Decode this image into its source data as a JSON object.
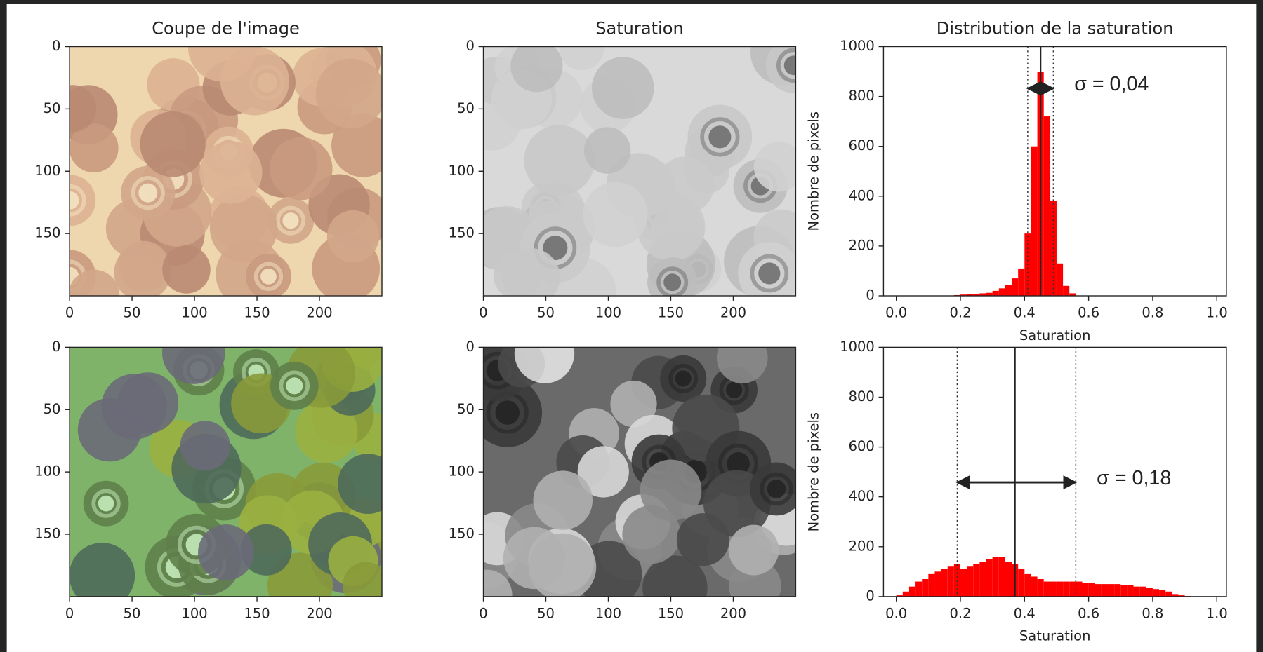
{
  "chart_data": [
    {
      "type": "image",
      "title": "Coupe de l'image",
      "xlim": [
        0,
        250
      ],
      "ylim": [
        0,
        200
      ],
      "y_inverted": true,
      "xticks": [
        0,
        50,
        100,
        150,
        200
      ],
      "yticks": [
        0,
        50,
        100,
        150
      ]
    },
    {
      "type": "image",
      "title": "Saturation",
      "xlim": [
        0,
        250
      ],
      "ylim": [
        0,
        200
      ],
      "y_inverted": true,
      "xticks": [
        0,
        50,
        100,
        150,
        200
      ],
      "yticks": [
        0,
        50,
        100,
        150
      ]
    },
    {
      "type": "histogram",
      "title": "Distribution de la saturation",
      "xlabel": "Saturation",
      "ylabel": "Nombre de pixels",
      "color": "#ff0000",
      "xlim": [
        -0.04,
        1.03
      ],
      "ylim": [
        0,
        1000
      ],
      "xticks": [
        {
          "value": 0,
          "label": "0.0"
        },
        {
          "value": 0.2,
          "label": "0.2"
        },
        {
          "value": 0.4,
          "label": "0.4"
        },
        {
          "value": 0.6,
          "label": "0.6"
        },
        {
          "value": 0.8,
          "label": "0.8"
        },
        {
          "value": 1,
          "label": "1.0"
        }
      ],
      "yticks": [
        0,
        200,
        400,
        600,
        800,
        1000
      ],
      "bins": [
        0,
        0.02,
        0.04,
        0.06,
        0.08,
        0.1,
        0.12,
        0.14,
        0.16,
        0.18,
        0.2,
        0.22,
        0.24,
        0.26,
        0.28,
        0.3,
        0.32,
        0.34,
        0.36,
        0.38,
        0.4,
        0.42,
        0.44,
        0.46,
        0.48,
        0.5,
        0.52,
        0.54,
        0.56,
        0.58,
        0.6,
        0.62,
        0.64,
        0.66,
        0.68,
        0.7,
        0.72,
        0.74,
        0.76,
        0.78,
        0.8,
        0.82,
        0.84,
        0.86,
        0.88,
        0.9,
        0.92,
        0.94,
        0.96,
        0.98,
        1
      ],
      "values": [
        0,
        0,
        0,
        0,
        0,
        0,
        0,
        0,
        0,
        3,
        5,
        6,
        8,
        10,
        12,
        20,
        30,
        45,
        70,
        110,
        250,
        600,
        900,
        720,
        380,
        130,
        40,
        10,
        0,
        0,
        0,
        0,
        0,
        0,
        0,
        0,
        0,
        0,
        0,
        0,
        0,
        0,
        0,
        0,
        0,
        0,
        0,
        0,
        0,
        0
      ],
      "mean": 0.45,
      "std_bounds": [
        0.41,
        0.49
      ],
      "annotation": "σ = 0,04"
    },
    {
      "type": "image",
      "xlim": [
        0,
        250
      ],
      "ylim": [
        0,
        200
      ],
      "y_inverted": true,
      "xticks": [
        0,
        50,
        100,
        150,
        200
      ],
      "yticks": [
        0,
        50,
        100,
        150
      ]
    },
    {
      "type": "image",
      "xlim": [
        0,
        250
      ],
      "ylim": [
        0,
        200
      ],
      "y_inverted": true,
      "xticks": [
        0,
        50,
        100,
        150,
        200
      ],
      "yticks": [
        0,
        50,
        100,
        150
      ]
    },
    {
      "type": "histogram",
      "xlabel": "Saturation",
      "ylabel": "Nombre de pixels",
      "color": "#ff0000",
      "xlim": [
        -0.04,
        1.03
      ],
      "ylim": [
        0,
        1000
      ],
      "xticks": [
        {
          "value": 0,
          "label": "0.0"
        },
        {
          "value": 0.2,
          "label": "0.2"
        },
        {
          "value": 0.4,
          "label": "0.4"
        },
        {
          "value": 0.6,
          "label": "0.6"
        },
        {
          "value": 0.8,
          "label": "0.8"
        },
        {
          "value": 1,
          "label": "1.0"
        }
      ],
      "yticks": [
        0,
        200,
        400,
        600,
        800,
        1000
      ],
      "bins": [
        0,
        0.02,
        0.04,
        0.06,
        0.08,
        0.1,
        0.12,
        0.14,
        0.16,
        0.18,
        0.2,
        0.22,
        0.24,
        0.26,
        0.28,
        0.3,
        0.32,
        0.34,
        0.36,
        0.38,
        0.4,
        0.42,
        0.44,
        0.46,
        0.48,
        0.5,
        0.52,
        0.54,
        0.56,
        0.58,
        0.6,
        0.62,
        0.64,
        0.66,
        0.68,
        0.7,
        0.72,
        0.74,
        0.76,
        0.78,
        0.8,
        0.82,
        0.84,
        0.86,
        0.88,
        0.9,
        0.92,
        0.94,
        0.96,
        0.98,
        1
      ],
      "values": [
        5,
        20,
        40,
        60,
        70,
        90,
        100,
        110,
        120,
        130,
        110,
        120,
        130,
        140,
        150,
        160,
        160,
        140,
        130,
        110,
        90,
        80,
        70,
        60,
        60,
        60,
        60,
        60,
        60,
        55,
        55,
        50,
        50,
        50,
        50,
        45,
        45,
        40,
        40,
        35,
        30,
        25,
        20,
        10,
        5,
        2,
        0,
        0,
        0,
        0
      ],
      "mean": 0.37,
      "std_bounds": [
        0.19,
        0.56
      ],
      "annotation": "σ = 0,18"
    }
  ]
}
